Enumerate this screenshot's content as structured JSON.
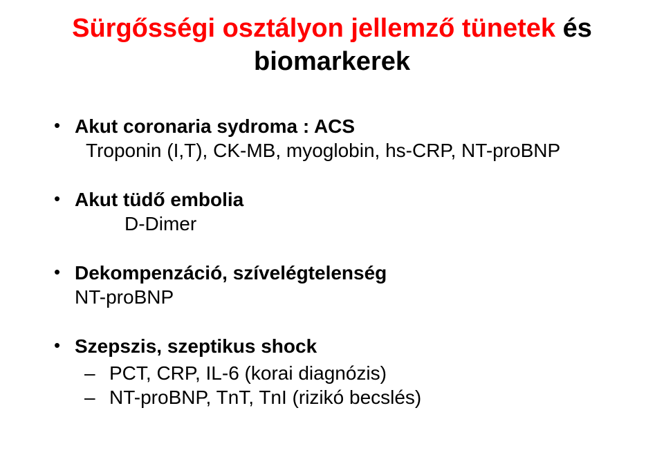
{
  "title": {
    "part1": "Sürgősségi osztályon jellemző tünetek",
    "part2": " és biomarkerek"
  },
  "items": [
    {
      "header": "Akut coronaria sydroma : ACS",
      "sub": " Troponin (I,T), CK-MB, myoglobin, hs-CRP, NT-proBNP",
      "subIndent": "indent1"
    },
    {
      "header": "Akut tüdő embolia",
      "sub": "D-Dimer",
      "subIndent": "indent2"
    },
    {
      "header": "Dekompenzáció, szívelégtelenség",
      "sub": "NT-proBNP",
      "subIndent": ""
    }
  ],
  "sepsis": {
    "header": "Szepszis, szeptikus shock",
    "lines": [
      " PCT, CRP, IL-6 (korai diagnózis)",
      " NT-proBNP, TnT, TnI (rizikó becslés)"
    ]
  },
  "colors": {
    "titleRed": "#ff0000",
    "text": "#000000",
    "background": "#ffffff"
  }
}
